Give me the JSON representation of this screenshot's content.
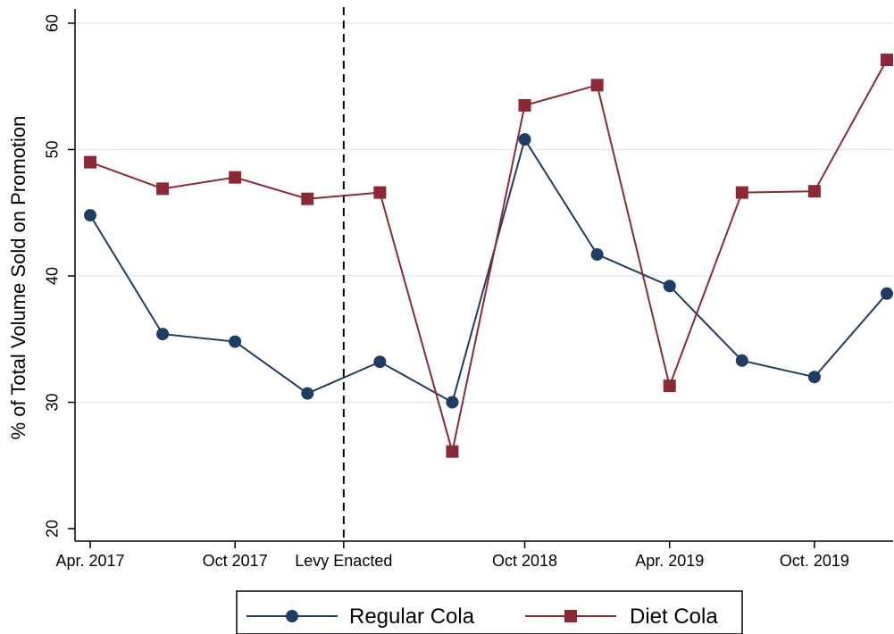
{
  "chart_data": {
    "type": "line",
    "title": "",
    "xlabel": "",
    "ylabel": "% of Total Volume Sold on Promotion",
    "ylim": [
      20,
      60
    ],
    "yticks": [
      20,
      30,
      40,
      50,
      60
    ],
    "x_index_range": [
      0,
      11
    ],
    "xticks": [
      {
        "pos": 0,
        "label": "Apr. 2017"
      },
      {
        "pos": 2,
        "label": "Oct 2017"
      },
      {
        "pos": 3.5,
        "label": "Levy Enacted"
      },
      {
        "pos": 6,
        "label": "Oct 2018"
      },
      {
        "pos": 8,
        "label": "Apr. 2019"
      },
      {
        "pos": 10,
        "label": "Oct. 2019"
      }
    ],
    "vline": {
      "pos": 3.5,
      "style": "dashed"
    },
    "grid": true,
    "legend_position": "bottom",
    "series": [
      {
        "name": "Regular Cola",
        "color": "#1f3d63",
        "marker": "circle",
        "x": [
          0,
          1,
          2,
          3,
          4,
          5,
          6,
          7,
          8,
          9,
          10,
          11
        ],
        "values": [
          44.8,
          35.4,
          34.8,
          30.7,
          33.2,
          30.0,
          50.8,
          41.7,
          39.2,
          33.3,
          32.0,
          38.6
        ]
      },
      {
        "name": "Diet Cola",
        "color": "#8b2a35",
        "marker": "square",
        "x": [
          0,
          1,
          2,
          3,
          4,
          5,
          6,
          7,
          8,
          9,
          10,
          11
        ],
        "values": [
          49.0,
          46.9,
          47.8,
          46.1,
          46.6,
          26.1,
          53.5,
          55.1,
          31.3,
          46.6,
          46.7,
          57.1
        ]
      }
    ]
  }
}
